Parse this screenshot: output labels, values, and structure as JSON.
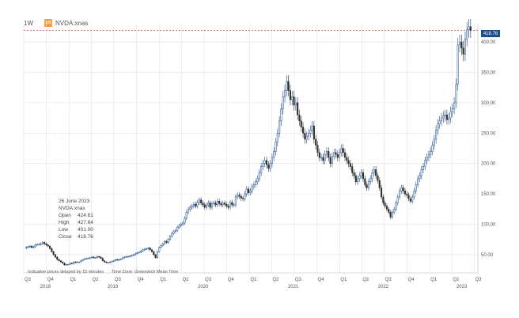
{
  "header": {
    "interval": "1W",
    "symbol": "NVDA:xnas",
    "symbol_badge": "EN"
  },
  "last_price_label": "418.76",
  "info_panel": {
    "date": "26 June 2023",
    "symbol": "NVDA:xnas",
    "rows": [
      {
        "label": "Open",
        "value": "424.61"
      },
      {
        "label": "High",
        "value": "427.64"
      },
      {
        "label": "Low",
        "value": "401.00"
      },
      {
        "label": "Close",
        "value": "418.76"
      }
    ]
  },
  "footnote": {
    "left": "Indicative prices delayed by 15 minutes",
    "right": "Time Zone: Greenwich Mean Time"
  },
  "colors": {
    "up": "#1f4e8c",
    "down": "#2f2f2f",
    "grid": "#e3e3e3",
    "last_line": "#e05555"
  },
  "chart_data": {
    "type": "candlestick",
    "ylim": [
      20,
      430
    ],
    "y_ticks": [
      50,
      100,
      150,
      200,
      250,
      300,
      350,
      400
    ],
    "y_tick_labels": [
      "50.00",
      "100.00",
      "150.00",
      "200.00",
      "250.00",
      "300.00",
      "350.00",
      "400.00"
    ],
    "x_range": [
      "2018-07-01",
      "2023-07-15"
    ],
    "quarter_ticks": [
      "Q3",
      "Q4",
      "Q1",
      "Q2",
      "Q3",
      "Q4",
      "Q1",
      "Q2",
      "Q3",
      "Q4",
      "Q1",
      "Q2",
      "Q3",
      "Q4",
      "Q1",
      "Q2",
      "Q3",
      "Q4",
      "Q1",
      "Q2",
      "Q3"
    ],
    "quarter_dates": [
      "2018-07-01",
      "2018-10-01",
      "2019-01-01",
      "2019-04-01",
      "2019-07-01",
      "2019-10-01",
      "2020-01-01",
      "2020-04-01",
      "2020-07-01",
      "2020-10-01",
      "2021-01-01",
      "2021-04-01",
      "2021-07-01",
      "2021-10-01",
      "2022-01-01",
      "2022-04-01",
      "2022-07-01",
      "2022-10-01",
      "2023-01-01",
      "2023-04-01",
      "2023-07-01"
    ],
    "year_labels": [
      {
        "label": "2018",
        "date": "2018-10-01"
      },
      {
        "label": "2019",
        "date": "2019-07-01"
      },
      {
        "label": "2020",
        "date": "2020-07-01"
      },
      {
        "label": "2021",
        "date": "2021-07-01"
      },
      {
        "label": "2022",
        "date": "2022-07-01"
      },
      {
        "label": "2023",
        "date": "2023-05-15"
      }
    ],
    "last_close": 418.76,
    "weekly_closes": [
      62,
      63,
      64,
      62,
      63,
      66,
      67,
      67,
      68,
      70,
      68,
      66,
      64,
      60,
      55,
      50,
      46,
      42,
      40,
      38,
      36,
      33,
      34,
      34,
      36,
      35,
      38,
      37,
      38,
      38,
      40,
      42,
      43,
      44,
      44,
      45,
      46,
      45,
      45,
      47,
      46,
      44,
      40,
      38,
      37,
      37,
      38,
      39,
      40,
      42,
      41,
      42,
      43,
      45,
      46,
      47,
      47,
      48,
      49,
      50,
      52,
      53,
      54,
      56,
      58,
      59,
      60,
      61,
      58,
      55,
      50,
      45,
      55,
      62,
      65,
      68,
      72,
      70,
      75,
      80,
      85,
      88,
      90,
      95,
      98,
      100,
      102,
      110,
      120,
      125,
      128,
      130,
      133,
      130,
      136,
      140,
      135,
      132,
      128,
      132,
      135,
      128,
      134,
      135,
      132,
      138,
      134,
      132,
      135,
      133,
      130,
      128,
      136,
      132,
      132,
      145,
      148,
      146,
      143,
      142,
      150,
      158,
      152,
      155,
      162,
      165,
      170,
      175,
      185,
      195,
      200,
      205,
      198,
      192,
      200,
      210,
      220,
      235,
      250,
      270,
      290,
      310,
      320,
      335,
      320,
      305,
      310,
      296,
      300,
      280,
      270,
      260,
      250,
      240,
      245,
      250,
      255,
      262,
      240,
      230,
      218,
      210,
      210,
      205,
      215,
      220,
      210,
      200,
      212,
      218,
      215,
      210,
      218,
      225,
      218,
      210,
      205,
      200,
      195,
      185,
      180,
      170,
      175,
      180,
      185,
      175,
      165,
      160,
      170,
      175,
      185,
      190,
      180,
      172,
      160,
      145,
      135,
      130,
      125,
      120,
      112,
      120,
      125,
      135,
      145,
      155,
      160,
      155,
      150,
      148,
      142,
      138,
      145,
      155,
      165,
      175,
      180,
      190,
      195,
      205,
      210,
      215,
      220,
      230,
      240,
      255,
      265,
      270,
      275,
      278,
      280,
      272,
      275,
      285,
      290,
      300,
      330,
      395,
      400,
      390,
      380,
      405,
      420,
      425,
      419
    ]
  }
}
